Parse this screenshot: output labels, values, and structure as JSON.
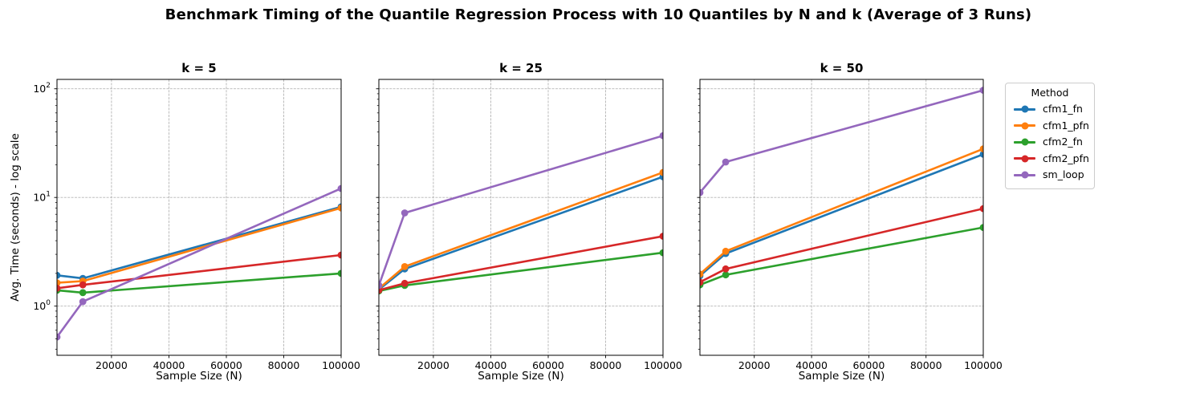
{
  "figure": {
    "title": "Benchmark Timing of the Quantile Regression Process with 10 Quantiles by N and k (Average of 3 Runs)"
  },
  "axes": {
    "xlabel": "Sample Size (N)",
    "ylabel": "Avg. Time (seconds) - log scale",
    "scale": "log-y",
    "grid": "dashed",
    "xlim": [
      1000,
      100000
    ],
    "ylog_range": [
      -0.4523,
      2.0863
    ],
    "xticks": [
      20000,
      40000,
      60000,
      80000,
      100000
    ],
    "yticks": [
      {
        "value": 1,
        "base": "10",
        "exp": "0"
      },
      {
        "value": 10,
        "base": "10",
        "exp": "1"
      },
      {
        "value": 100,
        "base": "10",
        "exp": "2"
      }
    ]
  },
  "legend": {
    "title": "Method",
    "position": "upper-right-outside",
    "items": [
      {
        "label": "cfm1_fn",
        "color": "#1f77b4"
      },
      {
        "label": "cfm1_pfn",
        "color": "#ff7f0e"
      },
      {
        "label": "cfm2_fn",
        "color": "#2ca02c"
      },
      {
        "label": "cfm2_pfn",
        "color": "#d62728"
      },
      {
        "label": "sm_loop",
        "color": "#9467bd"
      }
    ]
  },
  "chart_data": [
    {
      "type": "line",
      "title": "k = 5",
      "xlabel": "Sample Size (N)",
      "x": [
        1000,
        10000,
        100000
      ],
      "series": [
        {
          "name": "cfm1_fn",
          "color": "#1f77b4",
          "values": [
            1.92,
            1.8,
            8.2
          ]
        },
        {
          "name": "cfm1_pfn",
          "color": "#ff7f0e",
          "values": [
            1.64,
            1.7,
            8.0
          ]
        },
        {
          "name": "cfm2_fn",
          "color": "#2ca02c",
          "values": [
            1.4,
            1.33,
            2.0
          ]
        },
        {
          "name": "cfm2_pfn",
          "color": "#d62728",
          "values": [
            1.46,
            1.57,
            2.95
          ]
        },
        {
          "name": "sm_loop",
          "color": "#9467bd",
          "values": [
            0.52,
            1.1,
            12.1
          ]
        }
      ]
    },
    {
      "type": "line",
      "title": "k = 25",
      "xlabel": "Sample Size (N)",
      "x": [
        1000,
        10000,
        100000
      ],
      "series": [
        {
          "name": "cfm1_fn",
          "color": "#1f77b4",
          "values": [
            1.42,
            2.2,
            15.5
          ]
        },
        {
          "name": "cfm1_pfn",
          "color": "#ff7f0e",
          "values": [
            1.45,
            2.31,
            17.0
          ]
        },
        {
          "name": "cfm2_fn",
          "color": "#2ca02c",
          "values": [
            1.38,
            1.55,
            3.1
          ]
        },
        {
          "name": "cfm2_pfn",
          "color": "#d62728",
          "values": [
            1.4,
            1.62,
            4.4
          ]
        },
        {
          "name": "sm_loop",
          "color": "#9467bd",
          "values": [
            1.55,
            7.2,
            37.0
          ]
        }
      ]
    },
    {
      "type": "line",
      "title": "k = 50",
      "xlabel": "Sample Size (N)",
      "x": [
        1000,
        10000,
        100000
      ],
      "series": [
        {
          "name": "cfm1_fn",
          "color": "#1f77b4",
          "values": [
            1.9,
            3.05,
            25.0
          ]
        },
        {
          "name": "cfm1_pfn",
          "color": "#ff7f0e",
          "values": [
            1.97,
            3.2,
            28.0
          ]
        },
        {
          "name": "cfm2_fn",
          "color": "#2ca02c",
          "values": [
            1.57,
            1.94,
            5.3
          ]
        },
        {
          "name": "cfm2_pfn",
          "color": "#d62728",
          "values": [
            1.66,
            2.2,
            7.9
          ]
        },
        {
          "name": "sm_loop",
          "color": "#9467bd",
          "values": [
            11.1,
            21.2,
            97.0
          ]
        }
      ]
    }
  ]
}
